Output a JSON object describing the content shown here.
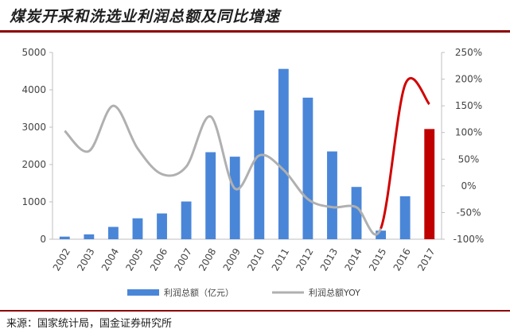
{
  "title": "煤炭开采和洗选业利润总额及同比增速",
  "source": "来源：国家统计局，国金证券研究所",
  "chart_data": {
    "type": "bar",
    "categories": [
      "2002",
      "2003",
      "2004",
      "2005",
      "2006",
      "2007",
      "2008",
      "2009",
      "2010",
      "2011",
      "2012",
      "2013",
      "2014",
      "2015",
      "2016",
      "2017"
    ],
    "series": [
      {
        "name": "利润总额（亿元）",
        "type": "bar",
        "axis": "left",
        "color": "#4a86d8",
        "highlight_color": "#c00000",
        "highlight_index": 15,
        "values": [
          70,
          130,
          330,
          560,
          690,
          1010,
          2330,
          2210,
          3450,
          4560,
          3790,
          2350,
          1400,
          230,
          1150,
          2950
        ]
      },
      {
        "name": "利润总额YOY",
        "type": "line",
        "axis": "right",
        "color": "#b0b0b0",
        "highlight_color": "#d10000",
        "values": [
          103,
          65,
          150,
          70,
          22,
          36,
          130,
          -5,
          57,
          30,
          -25,
          -40,
          -40,
          -80,
          190,
          153
        ]
      }
    ],
    "y_left": {
      "ylim": [
        0,
        5000
      ],
      "ticks": [
        "0",
        "1000",
        "2000",
        "3000",
        "4000",
        "5000"
      ]
    },
    "y_right": {
      "ylim": [
        -100,
        250
      ],
      "ticks": [
        "-100%",
        "-50%",
        "0%",
        "50%",
        "100%",
        "150%",
        "200%",
        "250%"
      ]
    },
    "legend": {
      "position": "bottom"
    },
    "grid": false
  }
}
